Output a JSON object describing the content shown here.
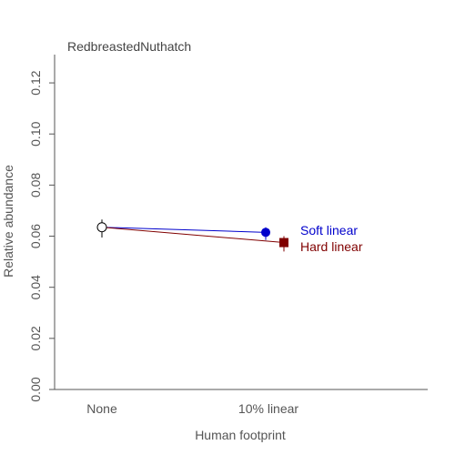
{
  "chart_data": {
    "type": "scatter",
    "title": "RedbreastedNuthatch",
    "xlabel": "Human footprint",
    "ylabel": "Relative abundance",
    "categories": [
      "None",
      "10% linear"
    ],
    "ylim": [
      0,
      0.13
    ],
    "yticks": [
      "0.00",
      "0.02",
      "0.04",
      "0.06",
      "0.08",
      "0.10",
      "0.12"
    ],
    "reference": {
      "category": "None",
      "value": 0.0635,
      "lower": 0.0595,
      "upper": 0.0665,
      "marker": "open-circle",
      "color": "#000000"
    },
    "series": [
      {
        "name": "Soft linear",
        "value": 0.0615,
        "lower": 0.0585,
        "upper": 0.0635,
        "color": "#0000cc",
        "marker": "circle"
      },
      {
        "name": "Hard linear",
        "value": 0.0575,
        "lower": 0.054,
        "upper": 0.06,
        "color": "#800000",
        "marker": "square"
      }
    ],
    "grid": false
  }
}
